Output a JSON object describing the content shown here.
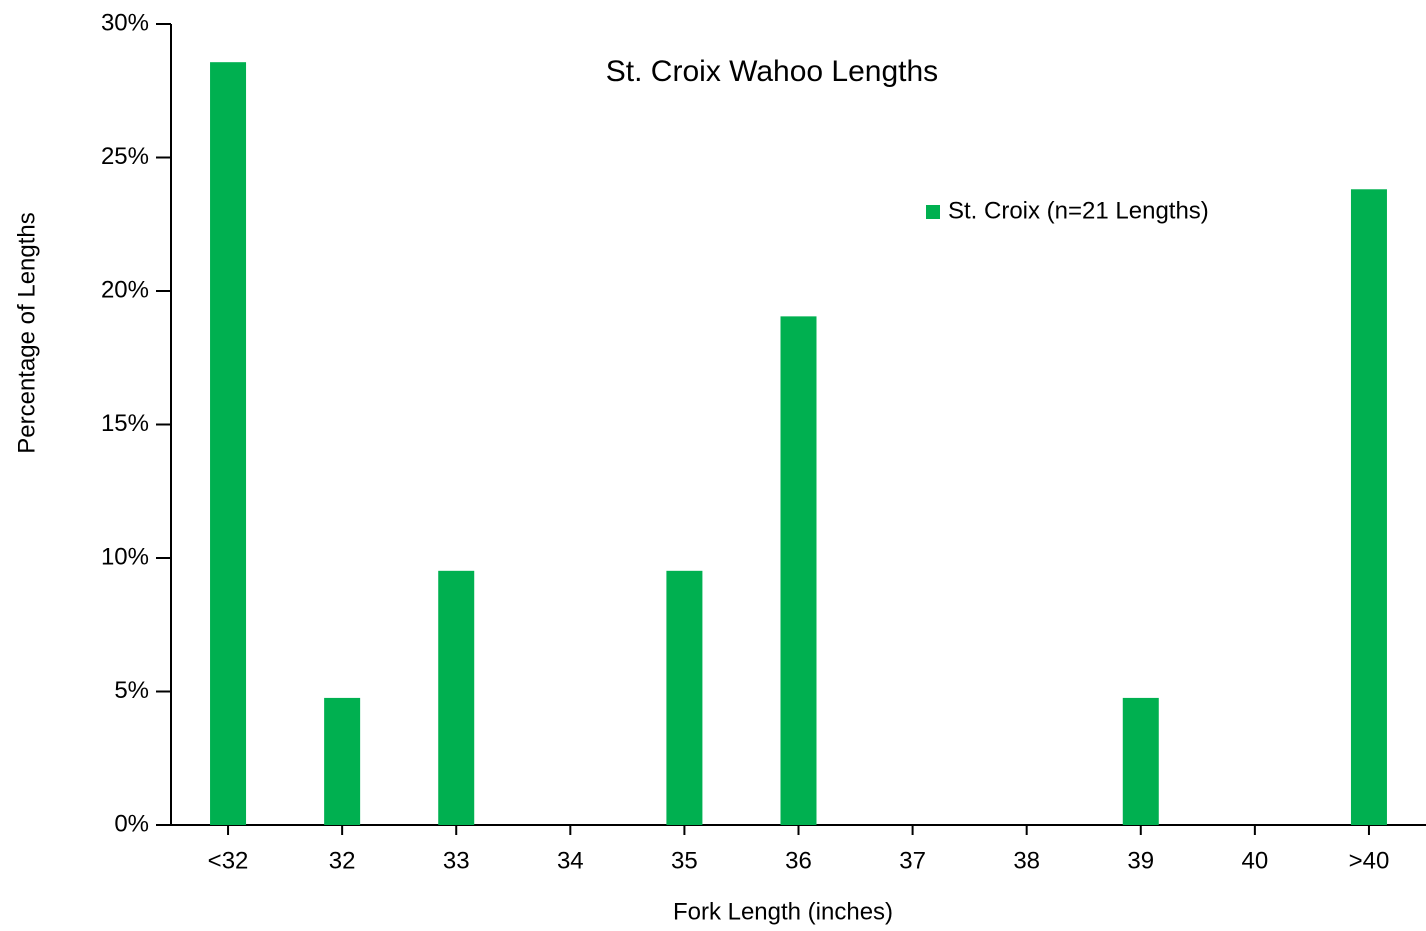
{
  "chart_data": {
    "type": "bar",
    "title": "St. Croix Wahoo Lengths",
    "x_label": "Fork Length (inches)",
    "y_label": "Percentage of Lengths",
    "categories": [
      "<32",
      "32",
      "33",
      "34",
      "35",
      "36",
      "37",
      "38",
      "39",
      "40",
      ">40"
    ],
    "series": [
      {
        "name": "St. Croix (n=21 Lengths)",
        "color": "#00b050",
        "values": [
          28.57,
          4.76,
          9.52,
          0,
          9.52,
          19.05,
          0,
          0,
          4.76,
          0,
          23.81
        ]
      }
    ],
    "ylim": [
      0,
      30
    ],
    "yticks": [
      {
        "value": 0,
        "label": "0%"
      },
      {
        "value": 5,
        "label": "5%"
      },
      {
        "value": 10,
        "label": "10%"
      },
      {
        "value": 15,
        "label": "15%"
      },
      {
        "value": 20,
        "label": "20%"
      },
      {
        "value": 25,
        "label": "25%"
      },
      {
        "value": 30,
        "label": "30%"
      }
    ],
    "grid": false,
    "legend": "upper right"
  }
}
